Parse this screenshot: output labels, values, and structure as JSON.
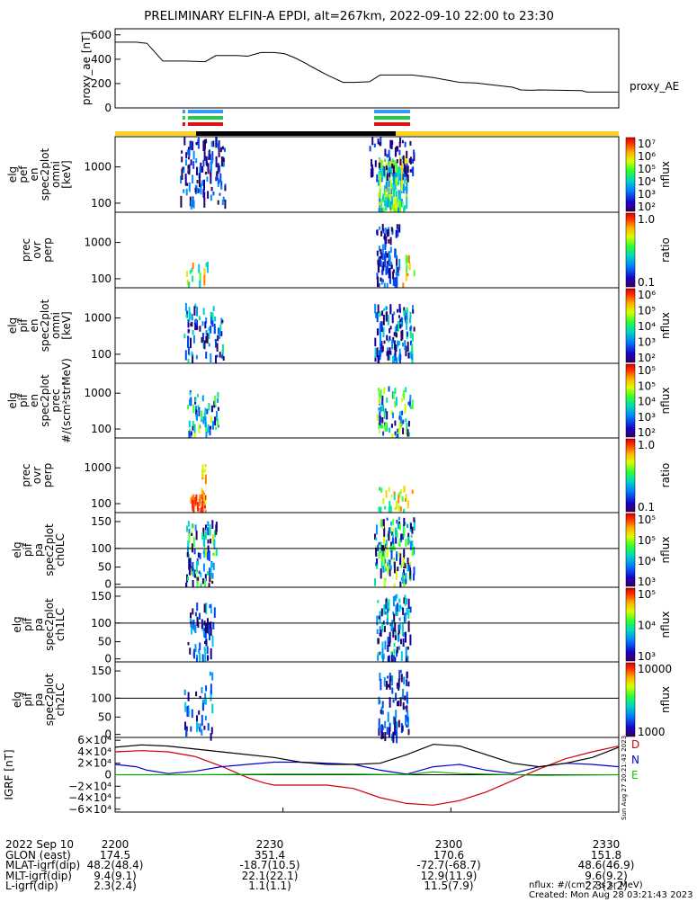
{
  "title": "PRELIMINARY ELFIN-A EPDI, alt=267km, 2022-09-10 22:00 to 23:30",
  "chart_data": [
    {
      "type": "line",
      "name": "proxy_ae",
      "ylabel": "proxy_ae [nT]",
      "legend": "proxy_AE",
      "ylim": [
        0,
        650
      ],
      "yticks": [
        "0",
        "200",
        "400",
        "600"
      ],
      "x_minutes": [
        0,
        8,
        12,
        18,
        22,
        26,
        34,
        38,
        46,
        50,
        55,
        60,
        64,
        68,
        72,
        74,
        80,
        86,
        90,
        96,
        100,
        108,
        112,
        120,
        130,
        136,
        150,
        153,
        157,
        160,
        168,
        176,
        178,
        190
      ],
      "y": [
        540,
        540,
        530,
        385,
        385,
        385,
        380,
        430,
        430,
        425,
        455,
        455,
        445,
        410,
        365,
        340,
        270,
        210,
        210,
        215,
        270,
        270,
        270,
        250,
        210,
        205,
        170,
        148,
        145,
        148,
        145,
        142,
        130,
        130
      ]
    },
    {
      "type": "heatmap",
      "name": "elf_pef_en_spec2plot_omni",
      "ylabel": [
        "elg",
        "pef",
        "en",
        "spec2plot",
        "omni",
        "[keV]"
      ],
      "yticks": [
        "1000",
        "100"
      ],
      "colorbar": {
        "label": "nflux",
        "ticks": [
          "10⁷",
          "10⁶",
          "10⁵",
          "10⁴",
          "10³",
          "10²"
        ]
      },
      "note": "spectrogram"
    },
    {
      "type": "heatmap",
      "name": "prec_ovr_perp_1",
      "ylabel": [
        "prec",
        "ovr",
        "perp"
      ],
      "yticks": [
        "1000",
        "100"
      ],
      "colorbar": {
        "label": "ratio",
        "ticks": [
          "1.0",
          "0.1"
        ]
      }
    },
    {
      "type": "heatmap",
      "name": "elg_pif_en_spec2plot_omni",
      "ylabel": [
        "elg",
        "pif",
        "en",
        "spec2plot",
        "omni",
        "[keV]"
      ],
      "yticks": [
        "1000",
        "100"
      ],
      "colorbar": {
        "label": "nflux",
        "ticks": [
          "10⁶",
          "10⁵",
          "10⁴",
          "10³",
          "10²"
        ]
      }
    },
    {
      "type": "heatmap",
      "name": "elg_pif_en_spec2plot_prec",
      "ylabel": [
        "elg",
        "pif",
        "en",
        "spec2plot",
        "prec",
        "#/(scm²strMeV)"
      ],
      "yticks": [
        "1000",
        "100"
      ],
      "colorbar": {
        "label": "nflux",
        "ticks": [
          "10⁵",
          "10⁵",
          "10⁴",
          "10³",
          "10²"
        ]
      }
    },
    {
      "type": "heatmap",
      "name": "prec_ovr_perp_2",
      "ylabel": [
        "prec",
        "ovr",
        "perp"
      ],
      "yticks": [
        "1000",
        "100"
      ],
      "colorbar": {
        "label": "ratio",
        "ticks": [
          "1.0",
          "0.1"
        ]
      }
    },
    {
      "type": "heatmap",
      "name": "elg_pif_pa_spec2plot_ch0LC",
      "ylabel": [
        "elg",
        "pif",
        "pa",
        "spec2plot",
        "ch0LC"
      ],
      "yticks": [
        "150",
        "100",
        "50",
        "0"
      ],
      "colorbar": {
        "label": "nflux",
        "ticks": [
          "10⁵",
          "10⁵",
          "10⁴",
          "10³"
        ]
      }
    },
    {
      "type": "heatmap",
      "name": "elg_pif_pa_spec2plot_ch1LC",
      "ylabel": [
        "elg",
        "pif",
        "pa",
        "spec2plot",
        "ch1LC"
      ],
      "yticks": [
        "150",
        "100",
        "50",
        "0"
      ],
      "colorbar": {
        "label": "nflux",
        "ticks": [
          "10⁵",
          "10⁴",
          "10³"
        ]
      }
    },
    {
      "type": "heatmap",
      "name": "elg_pif_pa_spec2plot_ch2LC",
      "ylabel": [
        "elg",
        "pif",
        "pa",
        "spec2plot",
        "ch2LC"
      ],
      "yticks": [
        "150",
        "100",
        "50",
        "0"
      ],
      "colorbar": {
        "label": "nflux",
        "ticks": [
          "10000",
          "1000"
        ]
      }
    },
    {
      "type": "line",
      "name": "IGRF",
      "ylabel": "IGRF [nT]",
      "ylim": [
        -65000,
        65000
      ],
      "yticks": [
        "6×10⁴",
        "4×10⁴",
        "2×10⁴",
        "0",
        "−2×10⁴",
        "−4×10⁴",
        "−6×10⁴"
      ],
      "series": [
        {
          "name": "D",
          "color": "#cc0000",
          "x_minutes": [
            0,
            10,
            20,
            30,
            40,
            50,
            56,
            60,
            70,
            80,
            90,
            100,
            110,
            120,
            130,
            140,
            150,
            160,
            170,
            180,
            190
          ],
          "values": [
            40000,
            42000,
            40000,
            32000,
            15000,
            -5000,
            -14000,
            -18000,
            -18000,
            -18000,
            -24000,
            -40000,
            -50000,
            -53000,
            -45000,
            -30000,
            -10000,
            10000,
            28000,
            40000,
            50000
          ]
        },
        {
          "name": "N",
          "color": "#0000cc",
          "x_minutes": [
            0,
            8,
            12,
            20,
            30,
            40,
            50,
            60,
            70,
            80,
            90,
            100,
            110,
            120,
            130,
            140,
            150,
            160,
            170,
            180,
            190
          ],
          "values": [
            18000,
            14000,
            8000,
            2000,
            6000,
            14000,
            18000,
            22000,
            22000,
            20000,
            18000,
            8000,
            1000,
            14000,
            18000,
            8000,
            2000,
            14000,
            20000,
            18000,
            14000
          ]
        },
        {
          "name": "E",
          "color": "#00aa00",
          "x_minutes": [
            0,
            30,
            60,
            90,
            110,
            120,
            130,
            160,
            190
          ],
          "values": [
            0,
            0,
            1000,
            1000,
            0,
            5000,
            2000,
            -1000,
            0
          ]
        },
        {
          "name": "",
          "color": "#000000",
          "x_minutes": [
            0,
            10,
            20,
            40,
            60,
            70,
            80,
            90,
            100,
            110,
            120,
            130,
            140,
            150,
            160,
            170,
            180,
            190
          ],
          "values": [
            48000,
            52000,
            50000,
            40000,
            30000,
            22000,
            18000,
            18000,
            20000,
            35000,
            53000,
            50000,
            35000,
            20000,
            14000,
            20000,
            30000,
            48000
          ]
        }
      ]
    }
  ],
  "legend_panel": {
    "labels": [
      "proxy_AE"
    ],
    "igrf_labels": [
      "D",
      "N",
      "E"
    ]
  },
  "side_note": "Sun Aug 27 20:21:43 2023",
  "table": {
    "rows": [
      [
        "2022 Sep 10",
        "2200",
        "2230",
        "2300",
        "2330"
      ],
      [
        "GLON (east)",
        "174.5",
        "351.4",
        "170.6",
        "151.8"
      ],
      [
        "MLAT-igrf(dip)",
        "48.2(48.4)",
        "-18.7(10.5)",
        "-72.7(-68.7)",
        "48.6(46.9)"
      ],
      [
        "MLT-igrf(dip)",
        "9.4(9.1)",
        "22.1(22.1)",
        "12.9(11.9)",
        "9.6(9.2)"
      ],
      [
        "L-igrf(dip)",
        "2.3(2.4)",
        "1.1(1.1)",
        "11.5(7.9)",
        "2.3(2.2)"
      ]
    ]
  },
  "footer": {
    "units": "nflux: #/(cm^2 s sr MeV)",
    "created": "Created: Mon Aug 28 03:21:43 2023"
  }
}
